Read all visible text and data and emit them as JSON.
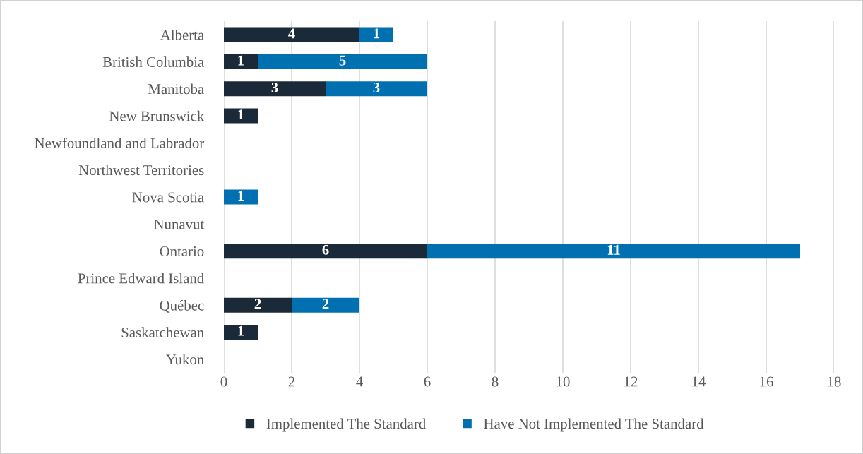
{
  "chart_data": {
    "type": "bar",
    "orientation": "horizontal",
    "stacked": true,
    "data_labels": true,
    "grid": "x",
    "legend": "bottom",
    "categories": [
      "Alberta",
      "British Columbia",
      "Manitoba",
      "New Brunswick",
      "Newfoundland and Labrador",
      "Northwest Territories",
      "Nova Scotia",
      "Nunavut",
      "Ontario",
      "Prince Edward Island",
      "Québec",
      "Saskatchewan",
      "Yukon"
    ],
    "series": [
      {
        "name": "Implemented The Standard",
        "color": "#1b2a38",
        "values": [
          4,
          1,
          3,
          1,
          null,
          null,
          null,
          null,
          6,
          null,
          2,
          1,
          null
        ]
      },
      {
        "name": "Have Not Implemented The Standard",
        "color": "#0070b0",
        "values": [
          1,
          5,
          3,
          null,
          null,
          null,
          1,
          null,
          11,
          null,
          2,
          null,
          null
        ]
      }
    ],
    "xlim": [
      0,
      18
    ],
    "xticks": [
      0,
      2,
      4,
      6,
      8,
      10,
      12,
      14,
      16,
      18
    ]
  }
}
